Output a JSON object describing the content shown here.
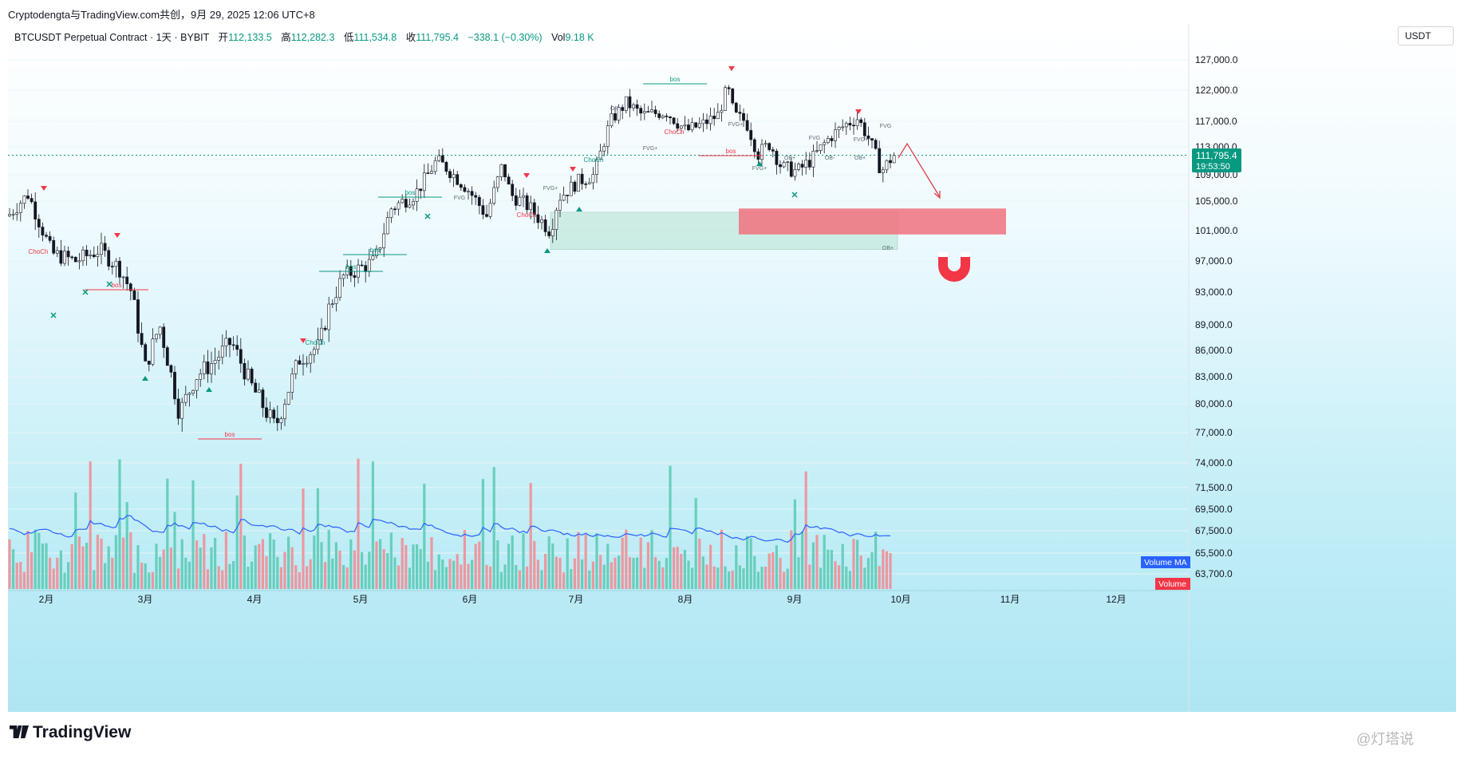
{
  "header": {
    "caption": "Cryptodengta与TradingView.com共创，9月 29, 2025 12:06 UTC+8"
  },
  "legend": {
    "symbol": "BTCUSDT Perpetual Contract · 1天 · BYBIT",
    "open_label": "开",
    "open": "112,133.5",
    "high_label": "高",
    "high": "112,282.3",
    "low_label": "低",
    "low": "111,534.8",
    "close_label": "收",
    "close": "111,795.4",
    "change": "−338.1 (−0.30%)",
    "vol_label": "Vol",
    "vol": "9.18 K"
  },
  "currency": "USDT",
  "last_price": {
    "price": "111,795.4",
    "countdown": "19:53:50",
    "color": "#089981"
  },
  "colors": {
    "up": "#089981",
    "down": "#f23645",
    "volume_ma": "#2962ff",
    "target_zone": "#f0717e"
  },
  "chart_data": {
    "type": "candlestick",
    "price_ticks": [
      "127,000.0",
      "122,000.0",
      "117,000.0",
      "113,000.0",
      "109,000.0",
      "105,000.0",
      "101,000.0",
      "97,000.0",
      "93,000.0",
      "89,000.0",
      "86,000.0",
      "83,000.0",
      "80,000.0",
      "77,000.0",
      "74,000.0",
      "71,500.0",
      "69,500.0",
      "67,500.0",
      "65,500.0",
      "63,700.0"
    ],
    "price_values": [
      127000,
      122000,
      117000,
      113000,
      109000,
      105000,
      101000,
      97000,
      93000,
      89000,
      86000,
      83000,
      80000,
      77000,
      74000,
      71500,
      69500,
      67500,
      65500,
      63700
    ],
    "month_labels": [
      "2月",
      "3月",
      "4月",
      "5月",
      "6月",
      "7月",
      "8月",
      "9月",
      "10月",
      "11月",
      "12月"
    ],
    "month_x": [
      58,
      182,
      319,
      452,
      589,
      722,
      859,
      996,
      1129,
      1266,
      1399
    ],
    "series": [
      {
        "name": "Volume MA",
        "label": "Volume MA",
        "color": "#2962ff"
      },
      {
        "name": "Volume",
        "label": "Volume",
        "color": "#f23645"
      }
    ],
    "annotations": {
      "bos": [
        "bos",
        "bos",
        "bos",
        "bos",
        "bos",
        "bos",
        "bos"
      ],
      "choch": [
        "ChoCh",
        "ChoCh",
        "ChoCh",
        "ChoCh",
        "ChoCh"
      ],
      "fvg": [
        "FVG+",
        "FVG+",
        "FVG+",
        "FVG",
        "FVG",
        "FVG+",
        "FVG",
        "FVG+"
      ],
      "ob": [
        "OB+",
        "OB+",
        "OB+",
        "OB-",
        "OB"
      ]
    },
    "target_zone": {
      "from": 104000,
      "to": 100500
    },
    "demand_zone": {
      "from": 103500,
      "to": 98500
    }
  },
  "footer": {
    "brand": "TradingView",
    "watermark": "@灯塔说"
  }
}
